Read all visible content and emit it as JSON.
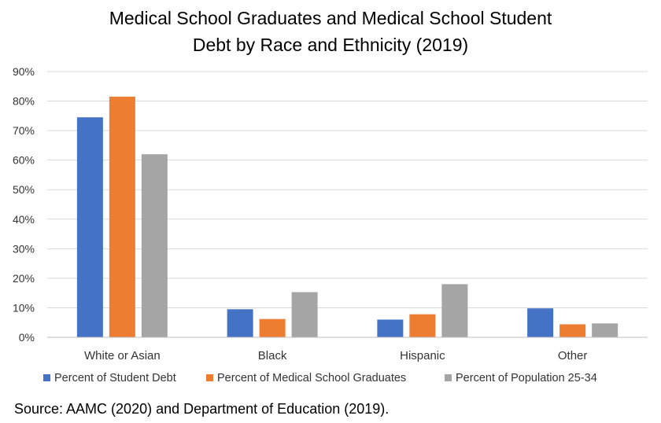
{
  "chart_data": {
    "type": "bar",
    "title_lines": [
      "Medical School Graduates and Medical School Student",
      "Debt by Race and Ethnicity (2019)"
    ],
    "categories": [
      "White or Asian",
      "Black",
      "Hispanic",
      "Other"
    ],
    "series": [
      {
        "name": "Percent of Student Debt",
        "color": "#4472C4",
        "values": [
          74.5,
          9.5,
          6.0,
          9.8
        ]
      },
      {
        "name": "Percent of Medical School Graduates",
        "color": "#ED7D31",
        "values": [
          81.5,
          6.2,
          7.8,
          4.4
        ]
      },
      {
        "name": "Percent of Population 25-34",
        "color": "#A5A5A5",
        "values": [
          62.0,
          15.3,
          18.0,
          4.7
        ]
      }
    ],
    "ylim": [
      0,
      90
    ],
    "yticks": [
      "0%",
      "10%",
      "20%",
      "30%",
      "40%",
      "50%",
      "60%",
      "70%",
      "80%",
      "90%"
    ],
    "grid": true,
    "legend": "bottom",
    "xlabel": "",
    "ylabel": ""
  },
  "source": "Source: AAMC (2020) and Department of Education (2019)."
}
